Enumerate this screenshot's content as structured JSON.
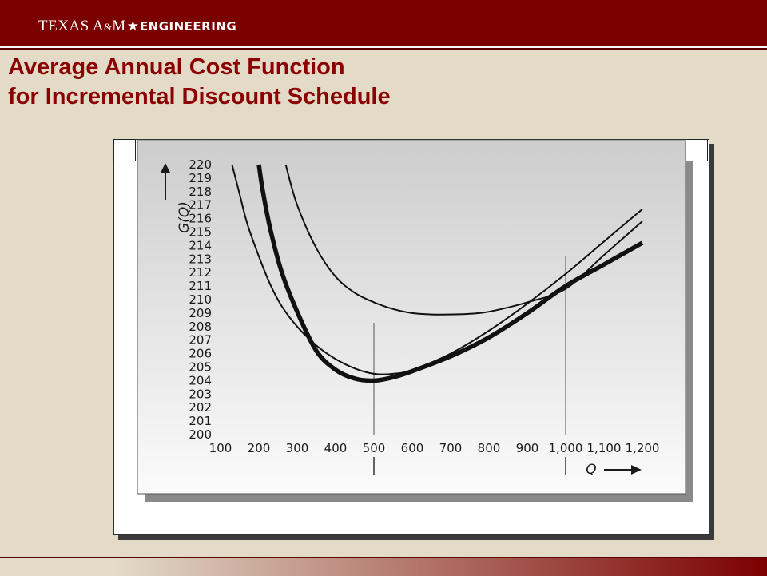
{
  "header": {
    "org": "TEXAS A",
    "amp": "&",
    "org_end": "M",
    "dept": "ENGINEERING"
  },
  "title": {
    "line1": "Average Annual Cost Function",
    "line2": "for Incremental Discount Schedule"
  },
  "colors": {
    "header_bg": "#7b0000",
    "title": "#8b0000",
    "slide_bg": "#e3dbc8"
  },
  "chart_data": {
    "type": "line",
    "title": "",
    "xlabel": "Q",
    "ylabel": "G(Q)",
    "xlim": [
      100,
      1200
    ],
    "ylim": [
      200,
      220
    ],
    "x_ticks": [
      "100",
      "200",
      "300",
      "400",
      "500",
      "600",
      "700",
      "800",
      "900",
      "1,000",
      "1,100",
      "1,200"
    ],
    "y_ticks": [
      "200",
      "201",
      "202",
      "203",
      "204",
      "205",
      "206",
      "207",
      "208",
      "209",
      "210",
      "211",
      "212",
      "213",
      "214",
      "215",
      "216",
      "217",
      "218",
      "219",
      "220"
    ],
    "breakpoints": [
      500,
      1000
    ],
    "series": [
      {
        "style": "thin",
        "x": [
          130,
          150,
          170,
          200,
          230,
          260,
          300,
          350,
          400,
          450,
          500,
          550,
          600,
          700,
          800,
          900,
          1000,
          1100,
          1200
        ],
        "y": [
          220,
          217.8,
          215.6,
          213.2,
          211.1,
          209.5,
          208.0,
          206.6,
          205.6,
          204.9,
          204.5,
          204.5,
          204.8,
          206.0,
          207.7,
          209.7,
          211.9,
          214.3,
          216.7
        ]
      },
      {
        "style": "thin",
        "x": [
          270,
          300,
          350,
          400,
          450,
          500,
          550,
          600,
          650,
          700,
          750,
          800,
          900,
          1000,
          1100,
          1200
        ],
        "y": [
          220,
          217.0,
          213.8,
          211.7,
          210.5,
          209.8,
          209.3,
          209.0,
          208.9,
          208.9,
          208.95,
          209.1,
          209.8,
          210.8,
          213.3,
          215.8
        ]
      },
      {
        "style": "thick",
        "x": [
          200,
          210,
          230,
          260,
          300,
          350,
          400,
          450,
          500,
          550,
          600,
          700,
          800,
          900,
          1000,
          1100,
          1200
        ],
        "y": [
          220,
          218.1,
          215.2,
          212.0,
          209.1,
          206.2,
          204.8,
          204.15,
          204.0,
          204.25,
          204.7,
          205.8,
          207.2,
          209.0,
          211.0,
          212.6,
          214.2
        ]
      }
    ],
    "grid": false,
    "legend": "none"
  }
}
